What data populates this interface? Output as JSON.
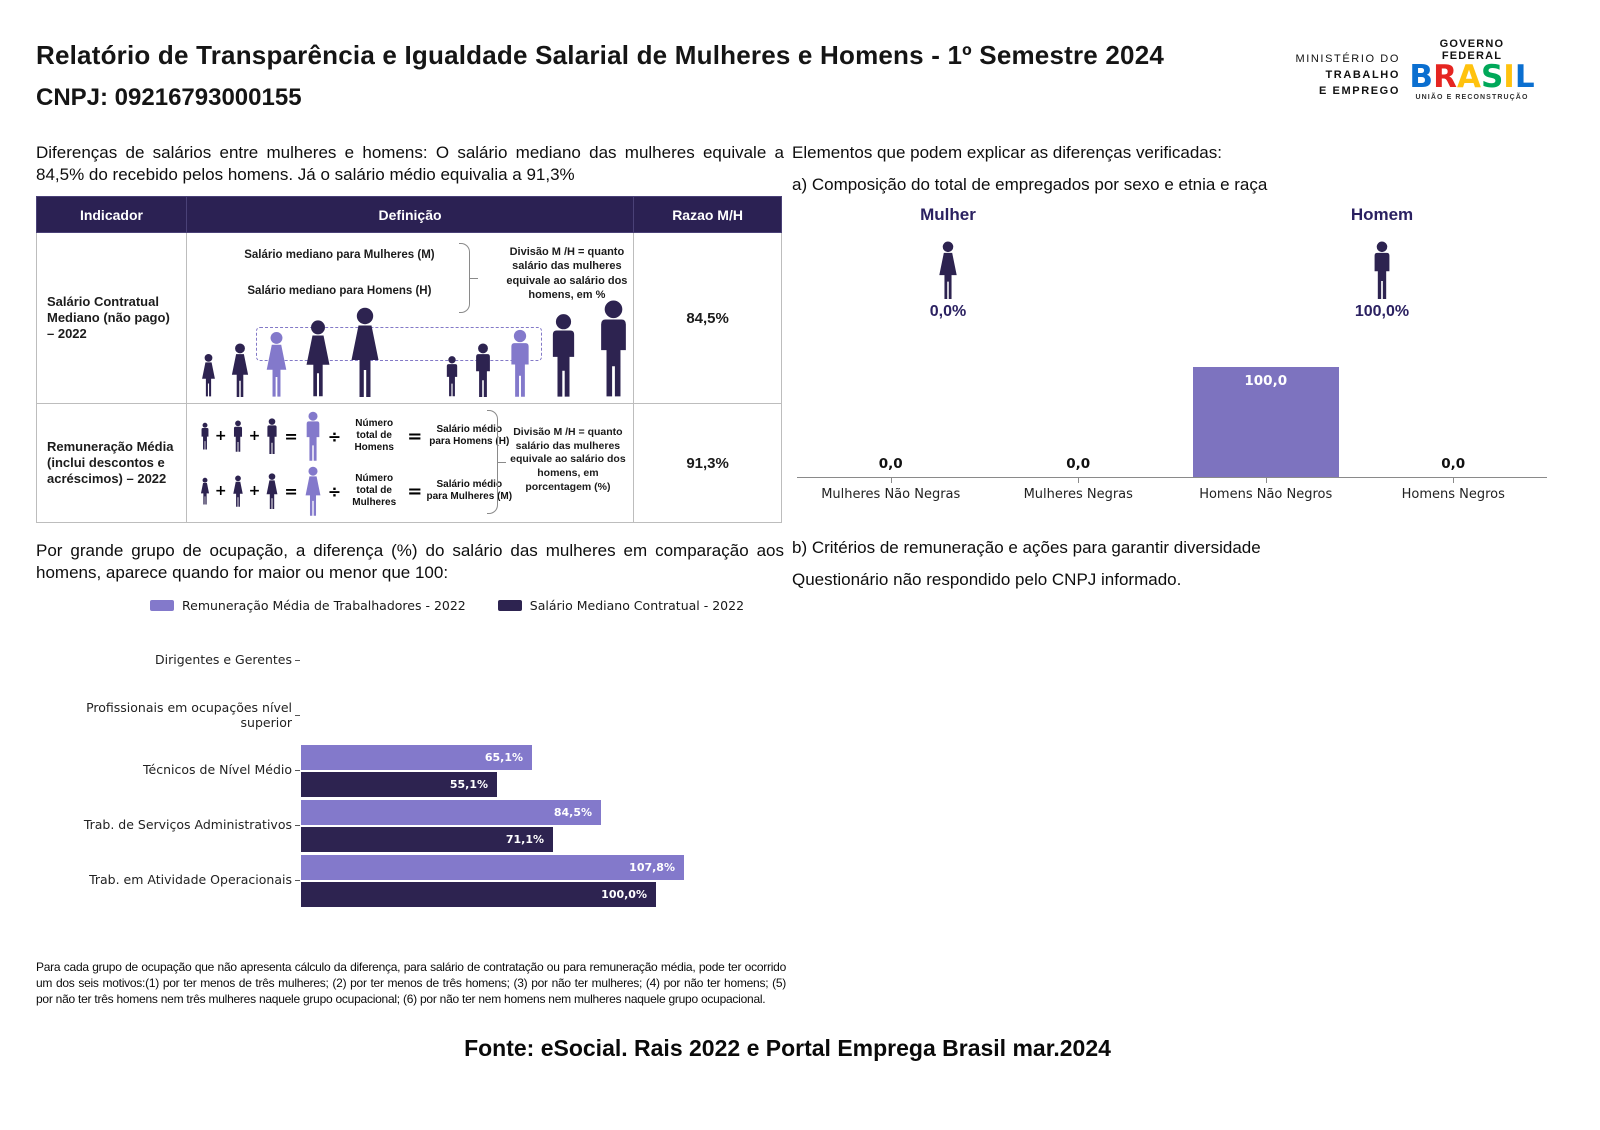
{
  "header": {
    "title": "Relatório de Transparência e Igualdade Salarial de Mulheres e Homens - 1º Semestre 2024",
    "cnpj": "CNPJ: 09216793000155",
    "ministry": [
      "MINISTÉRIO DO",
      "TRABALHO",
      "E EMPREGO"
    ],
    "gov": {
      "top": "GOVERNO FEDERAL",
      "brand": "BRASIL",
      "bottom": "UNIÃO E RECONSTRUÇÃO"
    }
  },
  "intro": "Diferenças de salários entre mulheres e homens: O salário mediano das mulheres equivale a 84,5% do recebido pelos homens. Já o salário médio equivalia a 91,3%",
  "table": {
    "headers": [
      "Indicador",
      "Definição",
      "Razao M/H"
    ],
    "rows": [
      {
        "indicator": "Salário Contratual Mediano (não pago) – 2022",
        "line1": "Salário mediano para Mulheres (M)",
        "line2": "Salário mediano para Homens (H)",
        "note": "Divisão M /H = quanto salário das mulheres equivale ao salário dos homens, em %",
        "ratio": "84,5%"
      },
      {
        "indicator": "Remuneração Média (inclui descontos e acréscimos) – 2022",
        "equations": [
          {
            "gender": "male",
            "count_label": "Número total de Homens",
            "salary_label": "Salário médio para Homens (H)"
          },
          {
            "gender": "female",
            "count_label": "Número total de Mulheres",
            "salary_label": "Salário médio para Mulheres (M)"
          }
        ],
        "ops": {
          "plus": "+",
          "equals": "=",
          "divide": "÷",
          "equals_heavy": "="
        },
        "note": "Divisão M /H = quanto salário das mulheres equivale ao salário dos homens, em porcentagem (%)",
        "ratio": "91,3%"
      }
    ]
  },
  "occupation": {
    "heading": "Por grande grupo de ocupação, a diferença (%) do salário das mulheres em comparação aos homens, aparece quando for maior ou menor que 100:",
    "footnote": "Para cada grupo de ocupação que não apresenta cálculo da diferença, para salário de contratação ou para remuneração média, pode ter ocorrido um dos seis motivos:(1) por ter menos de três mulheres; (2) por ter menos de três homens; (3) por não ter mulheres; (4) por não ter homens; (5) por não ter três homens nem três mulheres naquele grupo ocupacional; (6) por não ter nem homens nem mulheres naquele grupo ocupacional."
  },
  "right": {
    "heading": "Elementos que podem explicar as diferenças verificadas:",
    "item_a": "a) Composição do total de empregados por sexo e etnia e raça",
    "gender": {
      "female": {
        "label": "Mulher",
        "value": "0,0%"
      },
      "male": {
        "label": "Homem",
        "value": "100,0%"
      }
    },
    "item_b": "b) Critérios de remuneração e ações para garantir diversidade",
    "item_b_note": "Questionário não respondido pelo CNPJ informado."
  },
  "footer": {
    "fonte": "Fonte: eSocial. Rais 2022 e Portal Emprega Brasil mar.2024"
  },
  "chart_data": [
    {
      "type": "bar",
      "title": "a) Composição do total de empregados por sexo e etnia e raça",
      "categories": [
        "Mulheres Não Negras",
        "Mulheres Negras",
        "Homens Não Negros",
        "Homens Negros"
      ],
      "values": [
        0.0,
        0.0,
        100.0,
        0.0
      ],
      "value_labels": [
        "0,0",
        "0,0",
        "100,0",
        "0,0"
      ],
      "pictogram_values": {
        "Mulher": "0,0%",
        "Homem": "100,0%"
      },
      "xlabel": "",
      "ylabel": "",
      "ylim": [
        0,
        120
      ],
      "grid": false,
      "legend": false
    },
    {
      "type": "bar-horizontal",
      "title": "Por grande grupo de ocupação, a diferença (%) do salário das mulheres em comparação aos homens",
      "categories": [
        "Dirigentes e Gerentes",
        "Profissionais em ocupações nível superior",
        "Técnicos de Nível Médio",
        "Trab. de Serviços Administrativos",
        "Trab. em Atividade Operacionais"
      ],
      "series": [
        {
          "name": "Remuneração Média de Trabalhadores - 2022",
          "color_key": "light",
          "values": [
            null,
            null,
            65.1,
            84.5,
            107.8
          ],
          "value_labels": [
            null,
            null,
            "65,1%",
            "84,5%",
            "107,8%"
          ]
        },
        {
          "name": "Salário Mediano Contratual - 2022",
          "color_key": "dark",
          "values": [
            null,
            null,
            55.1,
            71.1,
            100.0
          ],
          "value_labels": [
            null,
            null,
            "55,1%",
            "71,1%",
            "100,0%"
          ]
        }
      ],
      "xlim": [
        0,
        120
      ],
      "grid": false,
      "legend_position": "top"
    }
  ],
  "colors": {
    "dark_purple": "#2D2350",
    "light_purple": "#8379CB",
    "comp_bar_purple": "#7D73BF",
    "header_bg": "#2B2153",
    "axis": "#8a8a8a",
    "brasil_letters": [
      "#0B6FD0",
      "#E52521",
      "#FFC20E",
      "#00A859",
      "#FFC20E",
      "#0B6FD0"
    ]
  }
}
